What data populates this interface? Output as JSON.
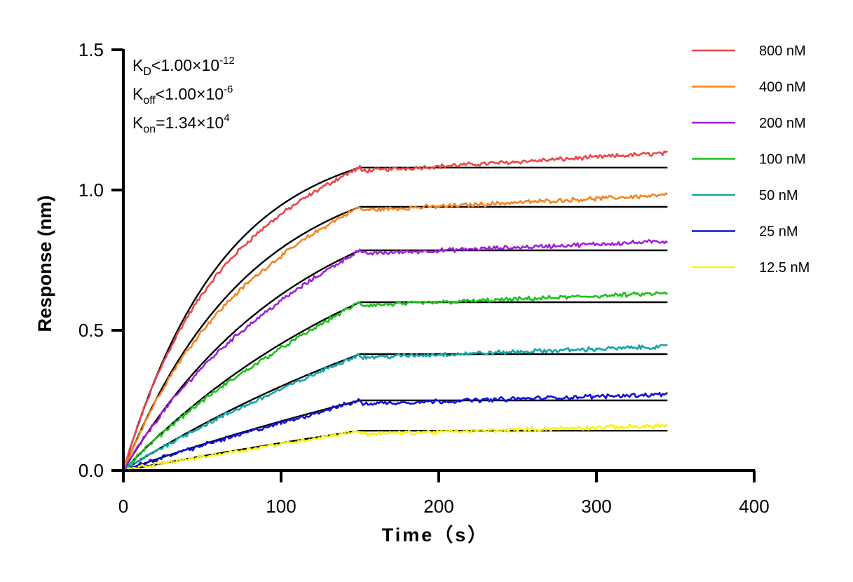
{
  "chart_data": {
    "type": "line",
    "xlabel": "Time（s）",
    "ylabel": "Response (nm)",
    "xlim": [
      0,
      400
    ],
    "ylim": [
      0,
      1.5
    ],
    "x_ticks": [
      "0",
      "100",
      "200",
      "300",
      "400"
    ],
    "y_ticks": [
      "0.0",
      "0.5",
      "1.0",
      "1.5"
    ],
    "grid": false,
    "legend_position": "top-right",
    "association_end_time": 150,
    "end_time": 345,
    "annotations": [
      {
        "main": "K",
        "sub": "D",
        "op": "<",
        "value": "1.00×10",
        "exp": "-12"
      },
      {
        "main": "K",
        "sub": "off",
        "op": "<",
        "value": "1.00×10",
        "exp": "-6"
      },
      {
        "main": "K",
        "sub": "on",
        "op": "=",
        "value": "1.34×10",
        "exp": "4"
      }
    ],
    "series": [
      {
        "name": "800 nM",
        "color": "#e8474b",
        "plateau": 1.08,
        "end_value": 1.12,
        "k": 0.0158,
        "fit_color": "#000000"
      },
      {
        "name": "400 nM",
        "color": "#f5841f",
        "plateau": 0.94,
        "end_value": 0.97,
        "k": 0.0125,
        "fit_color": "#000000"
      },
      {
        "name": "200 nM",
        "color": "#a21fd6",
        "plateau": 0.785,
        "end_value": 0.805,
        "k": 0.0088,
        "fit_color": "#000000"
      },
      {
        "name": "100 nM",
        "color": "#1ebf1e",
        "plateau": 0.6,
        "end_value": 0.62,
        "k": 0.0055,
        "fit_color": "#000000"
      },
      {
        "name": "50 nM",
        "color": "#17a5a5",
        "plateau": 0.415,
        "end_value": 0.43,
        "k": 0.0035,
        "fit_color": "#000000"
      },
      {
        "name": "25 nM",
        "color": "#1212d4",
        "plateau": 0.25,
        "end_value": 0.26,
        "k": 0.0022,
        "fit_color": "#000000"
      },
      {
        "name": "12.5 nM",
        "color": "#f7f21b",
        "plateau": 0.142,
        "end_value": 0.148,
        "k": 0.0015,
        "fit_color": "#000000"
      }
    ]
  }
}
